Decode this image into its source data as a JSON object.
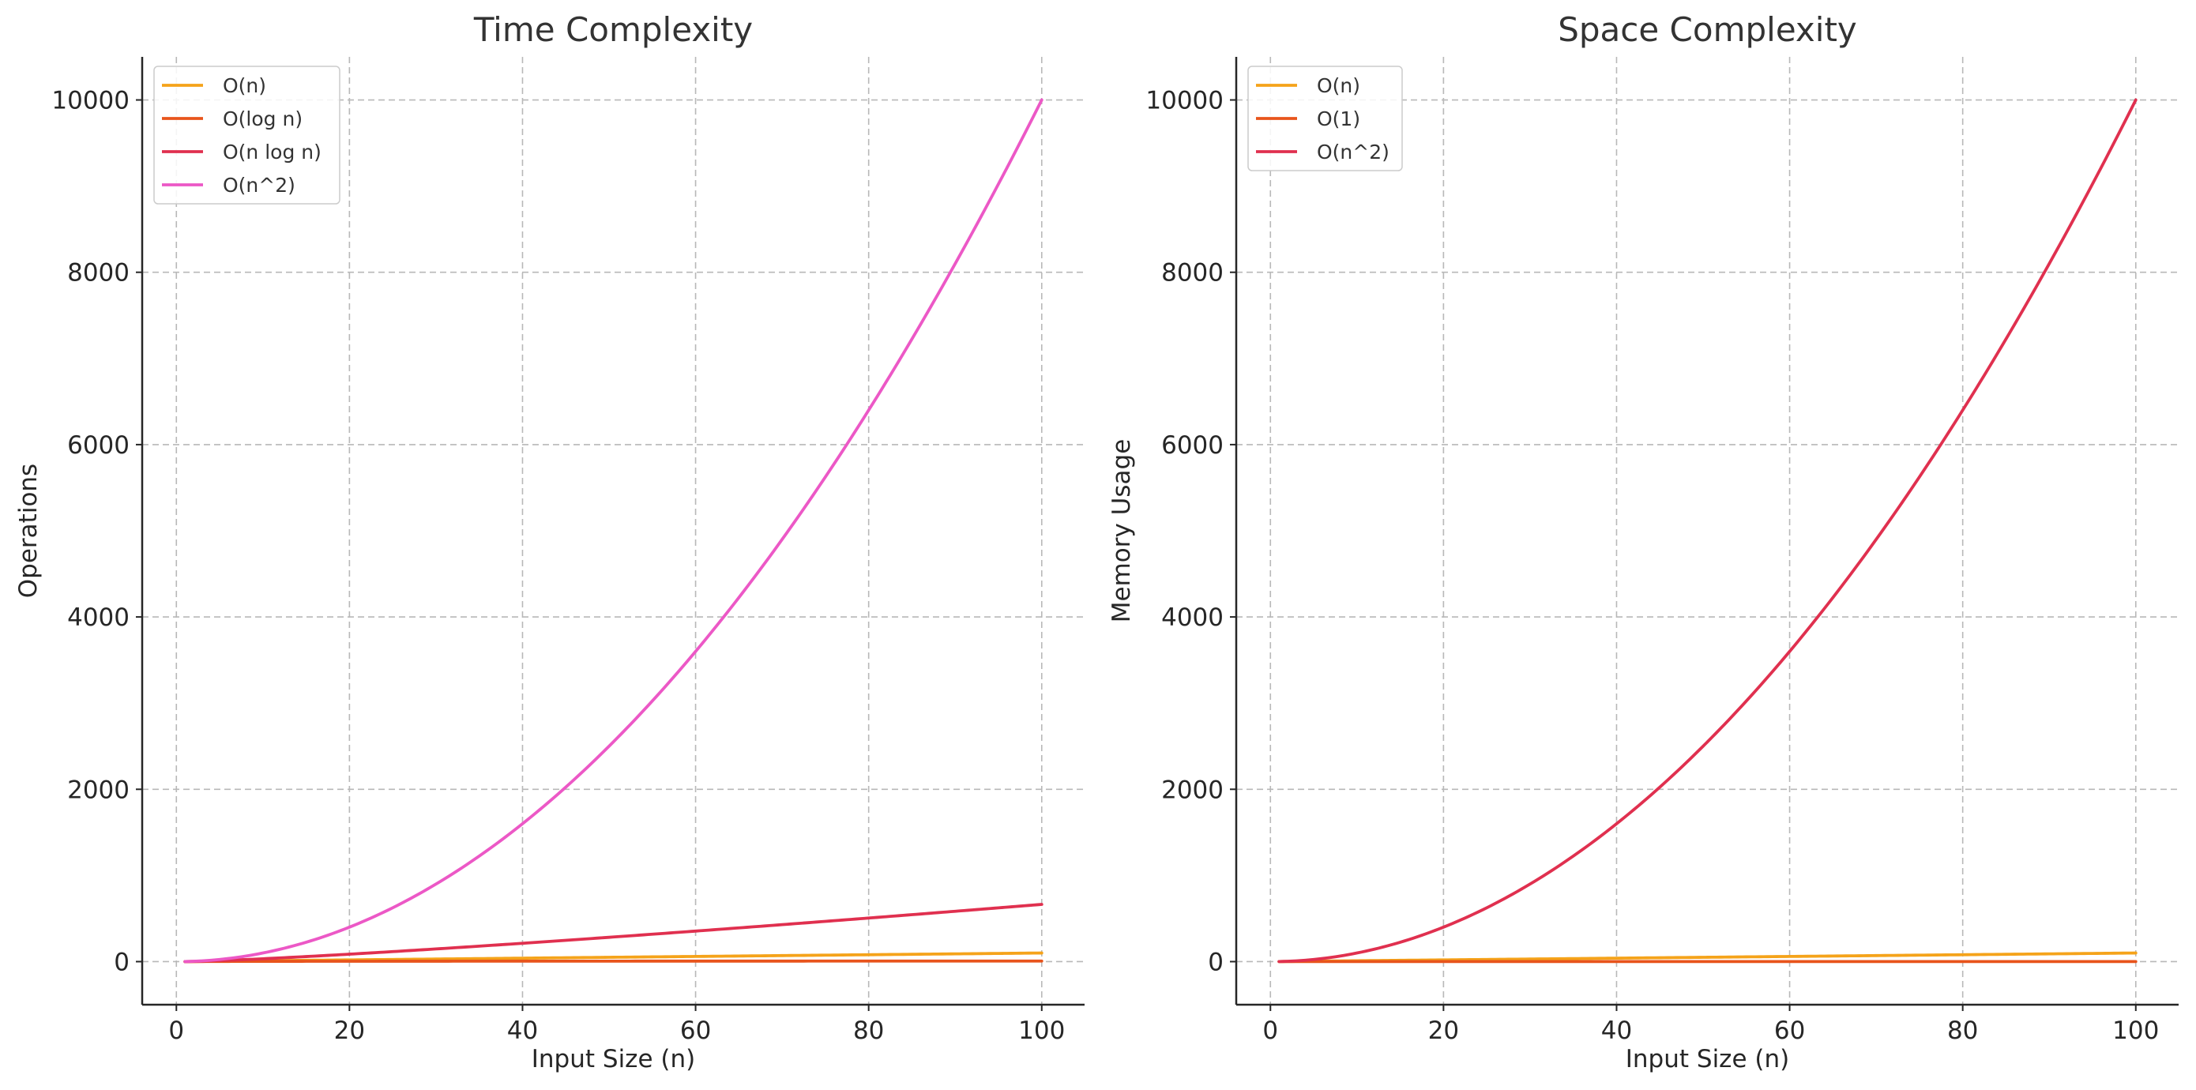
{
  "chart_data": [
    {
      "type": "line",
      "title": "Time Complexity",
      "xlabel": "Input Size (n)",
      "ylabel": "Operations",
      "xlim": [
        -3.95,
        104.95
      ],
      "ylim": [
        -499.95,
        10499.95
      ],
      "xticks": [
        0,
        20,
        40,
        60,
        80,
        100
      ],
      "yticks": [
        0,
        2000,
        4000,
        6000,
        8000,
        10000
      ],
      "grid": true,
      "legend_position": "top-left",
      "x_range": [
        1,
        100
      ],
      "series": [
        {
          "name": "O(n)",
          "color": "#f5a31a",
          "formula": "n",
          "x": [
            1,
            10,
            20,
            30,
            40,
            50,
            60,
            70,
            80,
            90,
            100
          ],
          "values": [
            1,
            10,
            20,
            30,
            40,
            50,
            60,
            70,
            80,
            90,
            100
          ]
        },
        {
          "name": "O(log n)",
          "color": "#e8541c",
          "formula": "log2n",
          "x": [
            1,
            10,
            20,
            30,
            40,
            50,
            60,
            70,
            80,
            90,
            100
          ],
          "values": [
            0,
            3.32,
            4.32,
            4.91,
            5.32,
            5.64,
            5.91,
            6.13,
            6.32,
            6.49,
            6.64
          ]
        },
        {
          "name": "O(n log n)",
          "color": "#e0304f",
          "formula": "nlog2n",
          "x": [
            1,
            10,
            20,
            30,
            40,
            50,
            60,
            70,
            80,
            90,
            100
          ],
          "values": [
            0,
            33.2,
            86.4,
            147.2,
            212.9,
            282.2,
            354.4,
            429.1,
            505.8,
            584.3,
            664.4
          ]
        },
        {
          "name": "O(n^2)",
          "color": "#ec58c6",
          "formula": "n2",
          "x": [
            1,
            10,
            20,
            30,
            40,
            50,
            60,
            70,
            80,
            90,
            100
          ],
          "values": [
            1,
            100,
            400,
            900,
            1600,
            2500,
            3600,
            4900,
            6400,
            8100,
            10000
          ]
        }
      ]
    },
    {
      "type": "line",
      "title": "Space Complexity",
      "xlabel": "Input Size (n)",
      "ylabel": "Memory Usage",
      "xlim": [
        -3.95,
        104.95
      ],
      "ylim": [
        -499.95,
        10499.95
      ],
      "xticks": [
        0,
        20,
        40,
        60,
        80,
        100
      ],
      "yticks": [
        0,
        2000,
        4000,
        6000,
        8000,
        10000
      ],
      "grid": true,
      "legend_position": "top-left",
      "x_range": [
        1,
        100
      ],
      "series": [
        {
          "name": "O(n)",
          "color": "#f5a31a",
          "formula": "n",
          "x": [
            1,
            10,
            20,
            30,
            40,
            50,
            60,
            70,
            80,
            90,
            100
          ],
          "values": [
            1,
            10,
            20,
            30,
            40,
            50,
            60,
            70,
            80,
            90,
            100
          ]
        },
        {
          "name": "O(1)",
          "color": "#e8541c",
          "formula": "const",
          "x": [
            1,
            10,
            20,
            30,
            40,
            50,
            60,
            70,
            80,
            90,
            100
          ],
          "values": [
            1,
            1,
            1,
            1,
            1,
            1,
            1,
            1,
            1,
            1,
            1
          ]
        },
        {
          "name": "O(n^2)",
          "color": "#e0304f",
          "formula": "n2",
          "x": [
            1,
            10,
            20,
            30,
            40,
            50,
            60,
            70,
            80,
            90,
            100
          ],
          "values": [
            1,
            100,
            400,
            900,
            1600,
            2500,
            3600,
            4900,
            6400,
            8100,
            10000
          ]
        }
      ]
    }
  ]
}
